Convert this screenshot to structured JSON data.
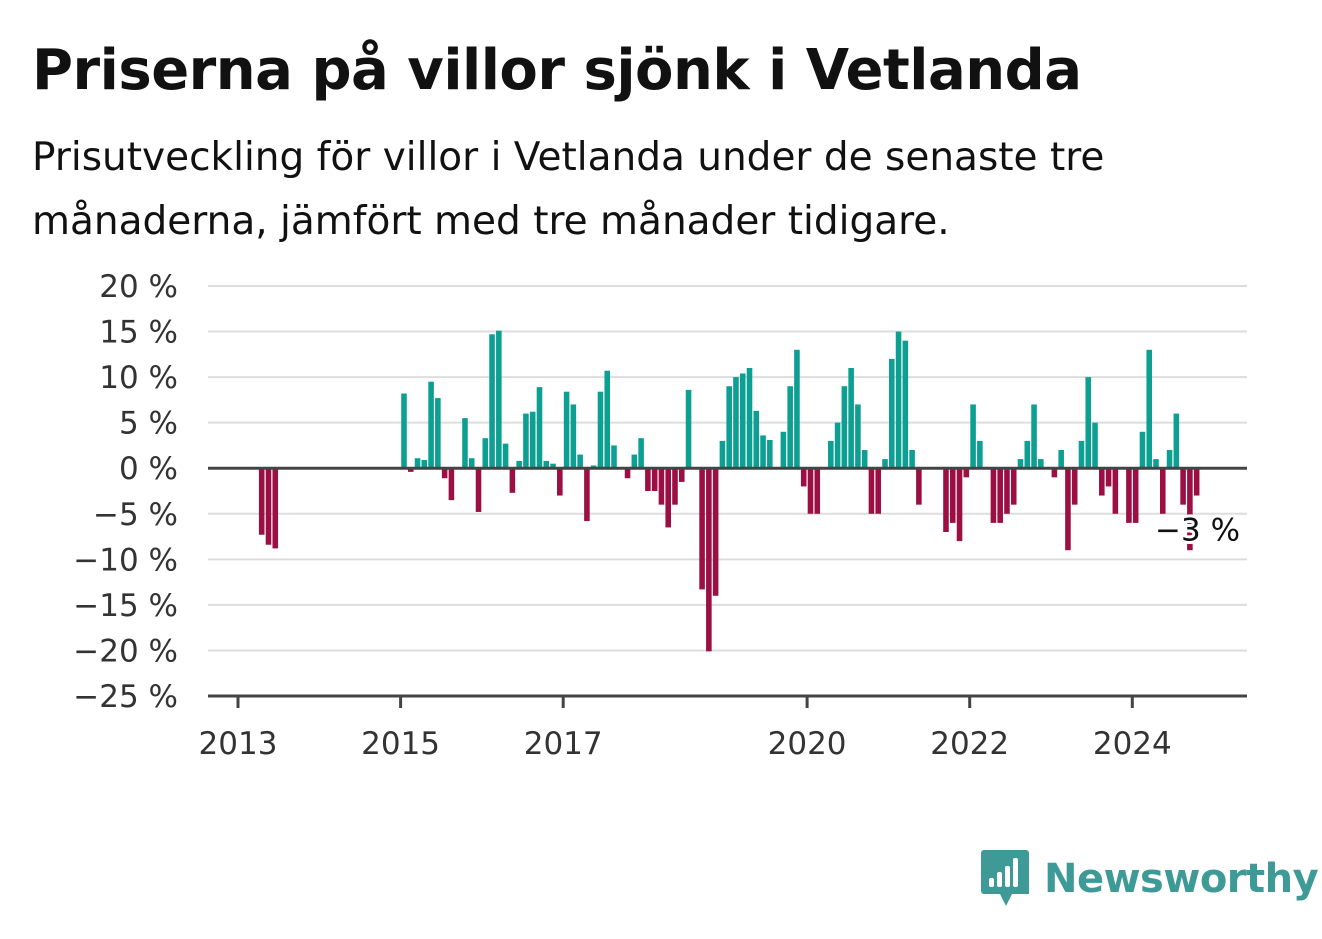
{
  "title": "Priserna på villor sjönk i Vetlanda",
  "subtitle": "Prisutveckling för villor i Vetlanda under de senaste tre månaderna, jämfört med tre månader tidigare.",
  "brand": {
    "name": "Newsworthy",
    "icon": "newsworthy-bars-icon"
  },
  "colors": {
    "positive": "#0c9f92",
    "negative": "#9b0f43",
    "grid": "#dddddd",
    "axis": "#444444",
    "brand": "#3e9a97"
  },
  "chart_data": {
    "type": "bar",
    "title": "Priserna på villor sjönk i Vetlanda",
    "subtitle": "Prisutveckling för villor i Vetlanda under de senaste tre månaderna, jämfört med tre månader tidigare.",
    "xlabel": "",
    "ylabel": "",
    "unit": "%",
    "ylim": [
      -25,
      20
    ],
    "yticks": [
      20,
      15,
      10,
      5,
      0,
      -5,
      -10,
      -15,
      -20,
      -25
    ],
    "ytick_labels": [
      "20 %",
      "15 %",
      "10 %",
      "5 %",
      "0 %",
      "−5 %",
      "−10 %",
      "−15 %",
      "−20 %",
      "−25 %"
    ],
    "xticks": [
      "2013",
      "2015",
      "2017",
      "2020",
      "2022",
      "2024"
    ],
    "grid": true,
    "start_month": "2013-01",
    "series": [
      {
        "values": [
          null,
          null,
          null,
          -7.3,
          -8.4,
          -8.8,
          null,
          null,
          null,
          null,
          null,
          null,
          null,
          null,
          null,
          null,
          null,
          null,
          null,
          null,
          null,
          null,
          null,
          null,
          8.2,
          -0.4,
          1.1,
          0.9,
          9.5,
          7.7,
          -1.1,
          -3.5,
          null,
          5.5,
          1.1,
          -4.8,
          3.3,
          14.7,
          15.1,
          2.7,
          -2.7,
          0.8,
          6.0,
          6.2,
          8.9,
          0.8,
          0.5,
          -3.0,
          8.4,
          7.0,
          1.5,
          -5.8,
          0.3,
          8.4,
          10.7,
          2.5,
          null,
          -1.1,
          1.5,
          3.3,
          -2.5,
          -2.5,
          -4.0,
          -6.5,
          -4.0,
          -1.5,
          8.6,
          null,
          -13.3,
          -20.1,
          -14.0,
          3.0,
          9.0,
          10.0,
          10.4,
          11.0,
          6.3,
          3.6,
          3.1,
          null,
          4.0,
          9.0,
          13.0,
          -2.0,
          -5.0,
          -5.0,
          null,
          3.0,
          5.0,
          9.0,
          11.0,
          7.0,
          2.0,
          -5.0,
          -5.0,
          1.0,
          12.0,
          15.0,
          14.0,
          2.0,
          -4.0,
          null,
          null,
          null,
          -7.0,
          -6.0,
          -8.0,
          -1.0,
          7.0,
          3.0,
          null,
          -6.0,
          -6.0,
          -5.0,
          -4.0,
          1.0,
          3.0,
          7.0,
          1.0,
          null,
          -1.0,
          2.0,
          -9.0,
          -4.0,
          3.0,
          10.0,
          5.0,
          -3.0,
          -2.0,
          -5.0,
          null,
          -6.0,
          -6.0,
          4.0,
          13.0,
          1.0,
          -5.0,
          2.0,
          6.0,
          -4.0,
          -9.0,
          -3.0
        ]
      }
    ],
    "annotations": [
      {
        "label": "−3 %"
      }
    ]
  }
}
